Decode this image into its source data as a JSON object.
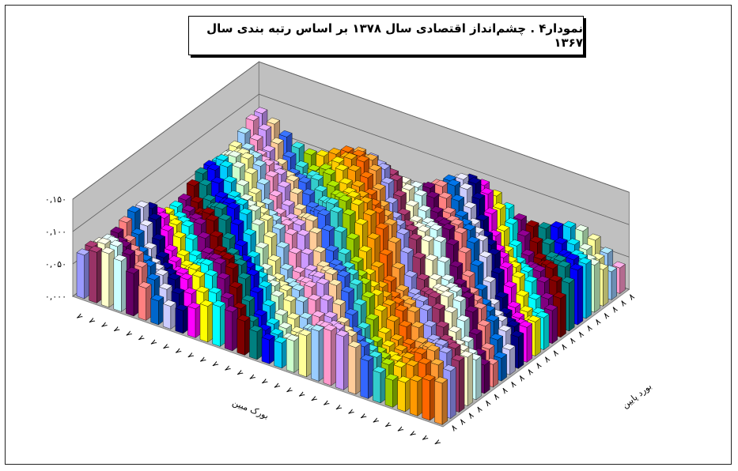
{
  "chart_data": {
    "type": "3d-bar",
    "title": "نمودار۴ . چشم‌انداز اقتصادی سال ۱۳۷۸ بر اساس رتبه بندی سال ۱۳۶۷",
    "xlabel": "بورک مبین",
    "ylabel": "بورد پایین",
    "zlim": [
      0,
      0.15
    ],
    "z_ticks": [
      "۰,۰۰۰",
      "۰,۰۵۰",
      "۰,۱۰۰",
      "۰,۱۵۰"
    ],
    "grid": true,
    "legend": "none",
    "series_colors": [
      "#9999FF",
      "#993366",
      "#FFFFCC",
      "#CCFFFF",
      "#660066",
      "#FF8080",
      "#0066CC",
      "#CCCCFF",
      "#000080",
      "#FF00FF",
      "#FFFF00",
      "#00FFFF",
      "#800080",
      "#800000",
      "#008080",
      "#0000FF",
      "#00CCFF",
      "#CCFFCC",
      "#FFFF99",
      "#99CCFF",
      "#FF99CC",
      "#CC99FF",
      "#FFCC99",
      "#3366FF",
      "#33CCCC",
      "#99CC00",
      "#FFCC00",
      "#FF9900",
      "#FF6600",
      "#FF9933"
    ]
  }
}
